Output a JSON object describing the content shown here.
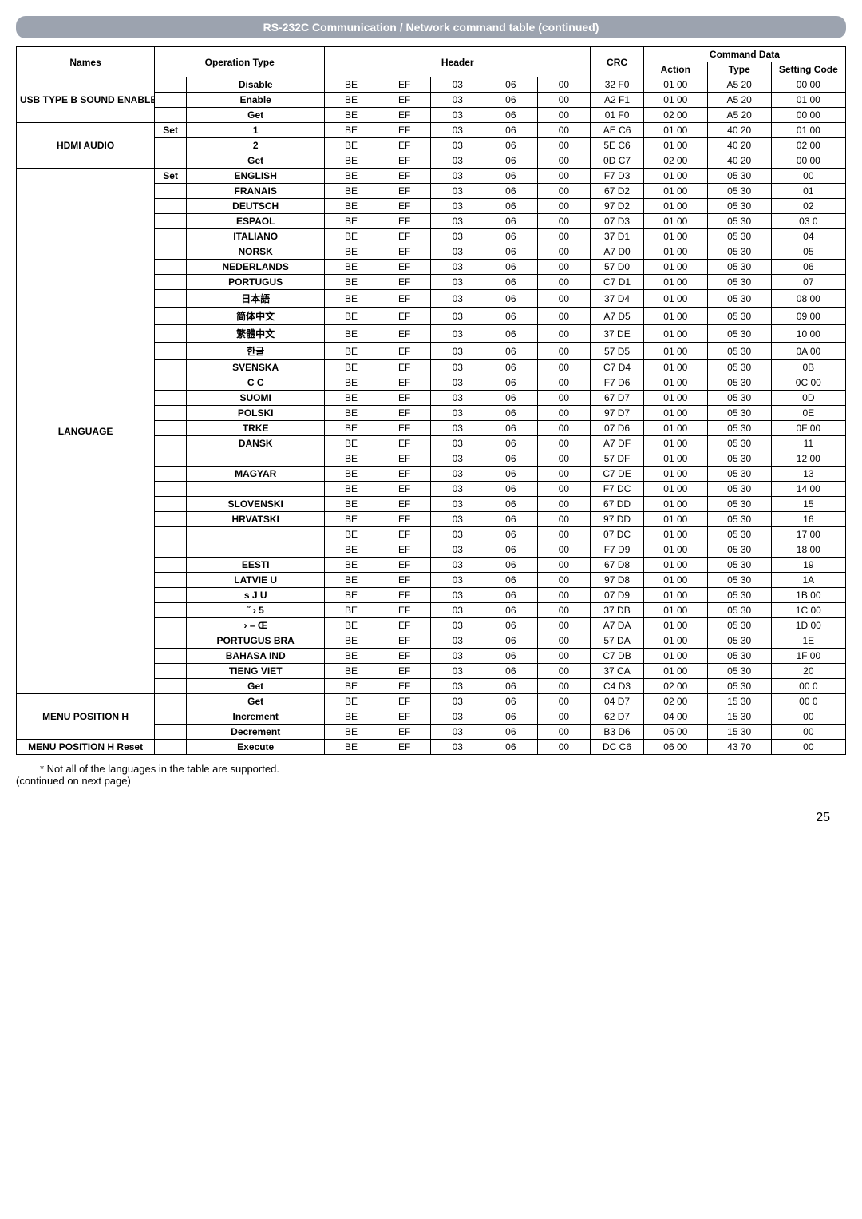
{
  "headerTitle": "RS-232C Communication / Network command table (continued)",
  "tableHeaders": {
    "names": "Names",
    "operation": "Operation Type",
    "header": "Header",
    "crc": "CRC",
    "commandData": "Command Data",
    "action": "Action",
    "type": "Type",
    "settingCode": "Setting Code"
  },
  "groups": [
    {
      "name": "USB TYPE B SOUND ENABLE",
      "rows": [
        {
          "sub": "",
          "op": "Disable",
          "h": [
            "BE",
            "EF",
            "03",
            "06",
            "00"
          ],
          "crc": "32 F0",
          "action": "01 00",
          "type": "A5 20",
          "setting": "00 00"
        },
        {
          "sub": "",
          "op": "Enable",
          "h": [
            "BE",
            "EF",
            "03",
            "06",
            "00"
          ],
          "crc": "A2 F1",
          "action": "01 00",
          "type": "A5 20",
          "setting": "01 00"
        },
        {
          "sub": "",
          "op": "Get",
          "h": [
            "BE",
            "EF",
            "03",
            "06",
            "00"
          ],
          "crc": "01 F0",
          "action": "02 00",
          "type": "A5 20",
          "setting": "00 00"
        }
      ]
    },
    {
      "name": "HDMI AUDIO",
      "rows": [
        {
          "sub": "Set",
          "op": "1",
          "h": [
            "BE",
            "EF",
            "03",
            "06",
            "00"
          ],
          "crc": "AE C6",
          "action": "01 00",
          "type": "40 20",
          "setting": "01 00"
        },
        {
          "sub": "",
          "op": "2",
          "h": [
            "BE",
            "EF",
            "03",
            "06",
            "00"
          ],
          "crc": "5E C6",
          "action": "01 00",
          "type": "40 20",
          "setting": "02 00"
        },
        {
          "sub": "",
          "op": "Get",
          "h": [
            "BE",
            "EF",
            "03",
            "06",
            "00"
          ],
          "crc": "0D C7",
          "action": "02 00",
          "type": "40 20",
          "setting": "00 00"
        }
      ]
    },
    {
      "name": "LANGUAGE",
      "rows": [
        {
          "sub": "Set",
          "op": "ENGLISH",
          "h": [
            "BE",
            "EF",
            "03",
            "06",
            "00"
          ],
          "crc": "F7 D3",
          "action": "01 00",
          "type": "05 30",
          "setting": "00"
        },
        {
          "sub": "",
          "op": "FRANAIS",
          "h": [
            "BE",
            "EF",
            "03",
            "06",
            "00"
          ],
          "crc": "67 D2",
          "action": "01 00",
          "type": "05 30",
          "setting": "01"
        },
        {
          "sub": "",
          "op": "DEUTSCH",
          "h": [
            "BE",
            "EF",
            "03",
            "06",
            "00"
          ],
          "crc": "97 D2",
          "action": "01 00",
          "type": "05 30",
          "setting": "02"
        },
        {
          "sub": "",
          "op": "ESPAOL",
          "h": [
            "BE",
            "EF",
            "03",
            "06",
            "00"
          ],
          "crc": "07 D3",
          "action": "01 00",
          "type": "05 30",
          "setting": "03 0"
        },
        {
          "sub": "",
          "op": "ITALIANO",
          "h": [
            "BE",
            "EF",
            "03",
            "06",
            "00"
          ],
          "crc": "37 D1",
          "action": "01 00",
          "type": "05 30",
          "setting": "04"
        },
        {
          "sub": "",
          "op": "NORSK",
          "h": [
            "BE",
            "EF",
            "03",
            "06",
            "00"
          ],
          "crc": "A7 D0",
          "action": "01 00",
          "type": "05 30",
          "setting": "05"
        },
        {
          "sub": "",
          "op": "NEDERLANDS",
          "h": [
            "BE",
            "EF",
            "03",
            "06",
            "00"
          ],
          "crc": "57 D0",
          "action": "01 00",
          "type": "05 30",
          "setting": "06"
        },
        {
          "sub": "",
          "op": "PORTUGUS",
          "h": [
            "BE",
            "EF",
            "03",
            "06",
            "00"
          ],
          "crc": "C7 D1",
          "action": "01 00",
          "type": "05 30",
          "setting": "07"
        },
        {
          "sub": "",
          "op": "日本語",
          "h": [
            "BE",
            "EF",
            "03",
            "06",
            "00"
          ],
          "crc": "37 D4",
          "action": "01 00",
          "type": "05 30",
          "setting": "08 00"
        },
        {
          "sub": "",
          "op": "简体中文",
          "h": [
            "BE",
            "EF",
            "03",
            "06",
            "00"
          ],
          "crc": "A7 D5",
          "action": "01 00",
          "type": "05 30",
          "setting": "09 00"
        },
        {
          "sub": "",
          "op": "繁體中文",
          "h": [
            "BE",
            "EF",
            "03",
            "06",
            "00"
          ],
          "crc": "37 DE",
          "action": "01 00",
          "type": "05 30",
          "setting": "10 00"
        },
        {
          "sub": "",
          "op": "한글",
          "h": [
            "BE",
            "EF",
            "03",
            "06",
            "00"
          ],
          "crc": "57 D5",
          "action": "01 00",
          "type": "05 30",
          "setting": "0A 00"
        },
        {
          "sub": "",
          "op": "SVENSKA",
          "h": [
            "BE",
            "EF",
            "03",
            "06",
            "00"
          ],
          "crc": "C7 D4",
          "action": "01 00",
          "type": "05 30",
          "setting": "0B"
        },
        {
          "sub": "",
          "op": "C C",
          "h": [
            "BE",
            "EF",
            "03",
            "06",
            "00"
          ],
          "crc": "F7 D6",
          "action": "01 00",
          "type": "05 30",
          "setting": "0C 00"
        },
        {
          "sub": "",
          "op": "SUOMI",
          "h": [
            "BE",
            "EF",
            "03",
            "06",
            "00"
          ],
          "crc": "67 D7",
          "action": "01 00",
          "type": "05 30",
          "setting": "0D"
        },
        {
          "sub": "",
          "op": "POLSKI",
          "h": [
            "BE",
            "EF",
            "03",
            "06",
            "00"
          ],
          "crc": "97 D7",
          "action": "01 00",
          "type": "05 30",
          "setting": "0E"
        },
        {
          "sub": "",
          "op": "TRKE",
          "h": [
            "BE",
            "EF",
            "03",
            "06",
            "00"
          ],
          "crc": "07 D6",
          "action": "01 00",
          "type": "05 30",
          "setting": "0F 00"
        },
        {
          "sub": "",
          "op": "DANSK",
          "h": [
            "BE",
            "EF",
            "03",
            "06",
            "00"
          ],
          "crc": "A7 DF",
          "action": "01 00",
          "type": "05 30",
          "setting": "11"
        },
        {
          "sub": "",
          "op": "",
          "h": [
            "BE",
            "EF",
            "03",
            "06",
            "00"
          ],
          "crc": "57 DF",
          "action": "01 00",
          "type": "05 30",
          "setting": "12 00"
        },
        {
          "sub": "",
          "op": "MAGYAR",
          "h": [
            "BE",
            "EF",
            "03",
            "06",
            "00"
          ],
          "crc": "C7 DE",
          "action": "01 00",
          "type": "05 30",
          "setting": "13"
        },
        {
          "sub": "",
          "op": "",
          "h": [
            "BE",
            "EF",
            "03",
            "06",
            "00"
          ],
          "crc": "F7 DC",
          "action": "01 00",
          "type": "05 30",
          "setting": "14 00"
        },
        {
          "sub": "",
          "op": "SLOVENSKI",
          "h": [
            "BE",
            "EF",
            "03",
            "06",
            "00"
          ],
          "crc": "67 DD",
          "action": "01 00",
          "type": "05 30",
          "setting": "15"
        },
        {
          "sub": "",
          "op": "HRVATSKI",
          "h": [
            "BE",
            "EF",
            "03",
            "06",
            "00"
          ],
          "crc": "97 DD",
          "action": "01 00",
          "type": "05 30",
          "setting": "16"
        },
        {
          "sub": "",
          "op": "",
          "h": [
            "BE",
            "EF",
            "03",
            "06",
            "00"
          ],
          "crc": "07 DC",
          "action": "01 00",
          "type": "05 30",
          "setting": "17 00"
        },
        {
          "sub": "",
          "op": "",
          "h": [
            "BE",
            "EF",
            "03",
            "06",
            "00"
          ],
          "crc": "F7 D9",
          "action": "01 00",
          "type": "05 30",
          "setting": "18 00"
        },
        {
          "sub": "",
          "op": "EESTI",
          "h": [
            "BE",
            "EF",
            "03",
            "06",
            "00"
          ],
          "crc": "67 D8",
          "action": "01 00",
          "type": "05 30",
          "setting": "19"
        },
        {
          "sub": "",
          "op": "LATVIE U",
          "h": [
            "BE",
            "EF",
            "03",
            "06",
            "00"
          ],
          "crc": "97 D8",
          "action": "01 00",
          "type": "05 30",
          "setting": "1A"
        },
        {
          "sub": "",
          "op": "s J U",
          "h": [
            "BE",
            "EF",
            "03",
            "06",
            "00"
          ],
          "crc": "07 D9",
          "action": "01 00",
          "type": "05 30",
          "setting": "1B 00"
        },
        {
          "sub": "",
          "op": "˝ › 5",
          "h": [
            "BE",
            "EF",
            "03",
            "06",
            "00"
          ],
          "crc": "37 DB",
          "action": "01 00",
          "type": "05 30",
          "setting": "1C 00"
        },
        {
          "sub": "",
          "op": "› – Œ",
          "h": [
            "BE",
            "EF",
            "03",
            "06",
            "00"
          ],
          "crc": "A7 DA",
          "action": "01 00",
          "type": "05 30",
          "setting": "1D 00"
        },
        {
          "sub": "",
          "op": "PORTUGUS BRA",
          "h": [
            "BE",
            "EF",
            "03",
            "06",
            "00"
          ],
          "crc": "57 DA",
          "action": "01 00",
          "type": "05 30",
          "setting": "1E"
        },
        {
          "sub": "",
          "op": "BAHASA IND",
          "h": [
            "BE",
            "EF",
            "03",
            "06",
            "00"
          ],
          "crc": "C7 DB",
          "action": "01 00",
          "type": "05 30",
          "setting": "1F 00"
        },
        {
          "sub": "",
          "op": "TIENG VIET",
          "h": [
            "BE",
            "EF",
            "03",
            "06",
            "00"
          ],
          "crc": "37 CA",
          "action": "01 00",
          "type": "05 30",
          "setting": "20"
        },
        {
          "sub": "",
          "op": "Get",
          "h": [
            "BE",
            "EF",
            "03",
            "06",
            "00"
          ],
          "crc": "C4 D3",
          "action": "02 00",
          "type": "05 30",
          "setting": "00 0"
        }
      ]
    },
    {
      "name": "MENU POSITION H",
      "rows": [
        {
          "sub": "",
          "op": "Get",
          "h": [
            "BE",
            "EF",
            "03",
            "06",
            "00"
          ],
          "crc": "04 D7",
          "action": "02 00",
          "type": "15 30",
          "setting": "00 0"
        },
        {
          "sub": "",
          "op": "Increment",
          "h": [
            "BE",
            "EF",
            "03",
            "06",
            "00"
          ],
          "crc": "62 D7",
          "action": "04 00",
          "type": "15 30",
          "setting": "00"
        },
        {
          "sub": "",
          "op": "Decrement",
          "h": [
            "BE",
            "EF",
            "03",
            "06",
            "00"
          ],
          "crc": "B3 D6",
          "action": "05 00",
          "type": "15 30",
          "setting": "00"
        }
      ]
    },
    {
      "name": "MENU POSITION H Reset",
      "rows": [
        {
          "sub": "",
          "op": "Execute",
          "h": [
            "BE",
            "EF",
            "03",
            "06",
            "00"
          ],
          "crc": "DC C6",
          "action": "06 00",
          "type": "43 70",
          "setting": "00"
        }
      ]
    }
  ],
  "footnote": "* Not all of the languages in the table are supported.",
  "continued": "(continued on next page)",
  "pageNumber": "25"
}
